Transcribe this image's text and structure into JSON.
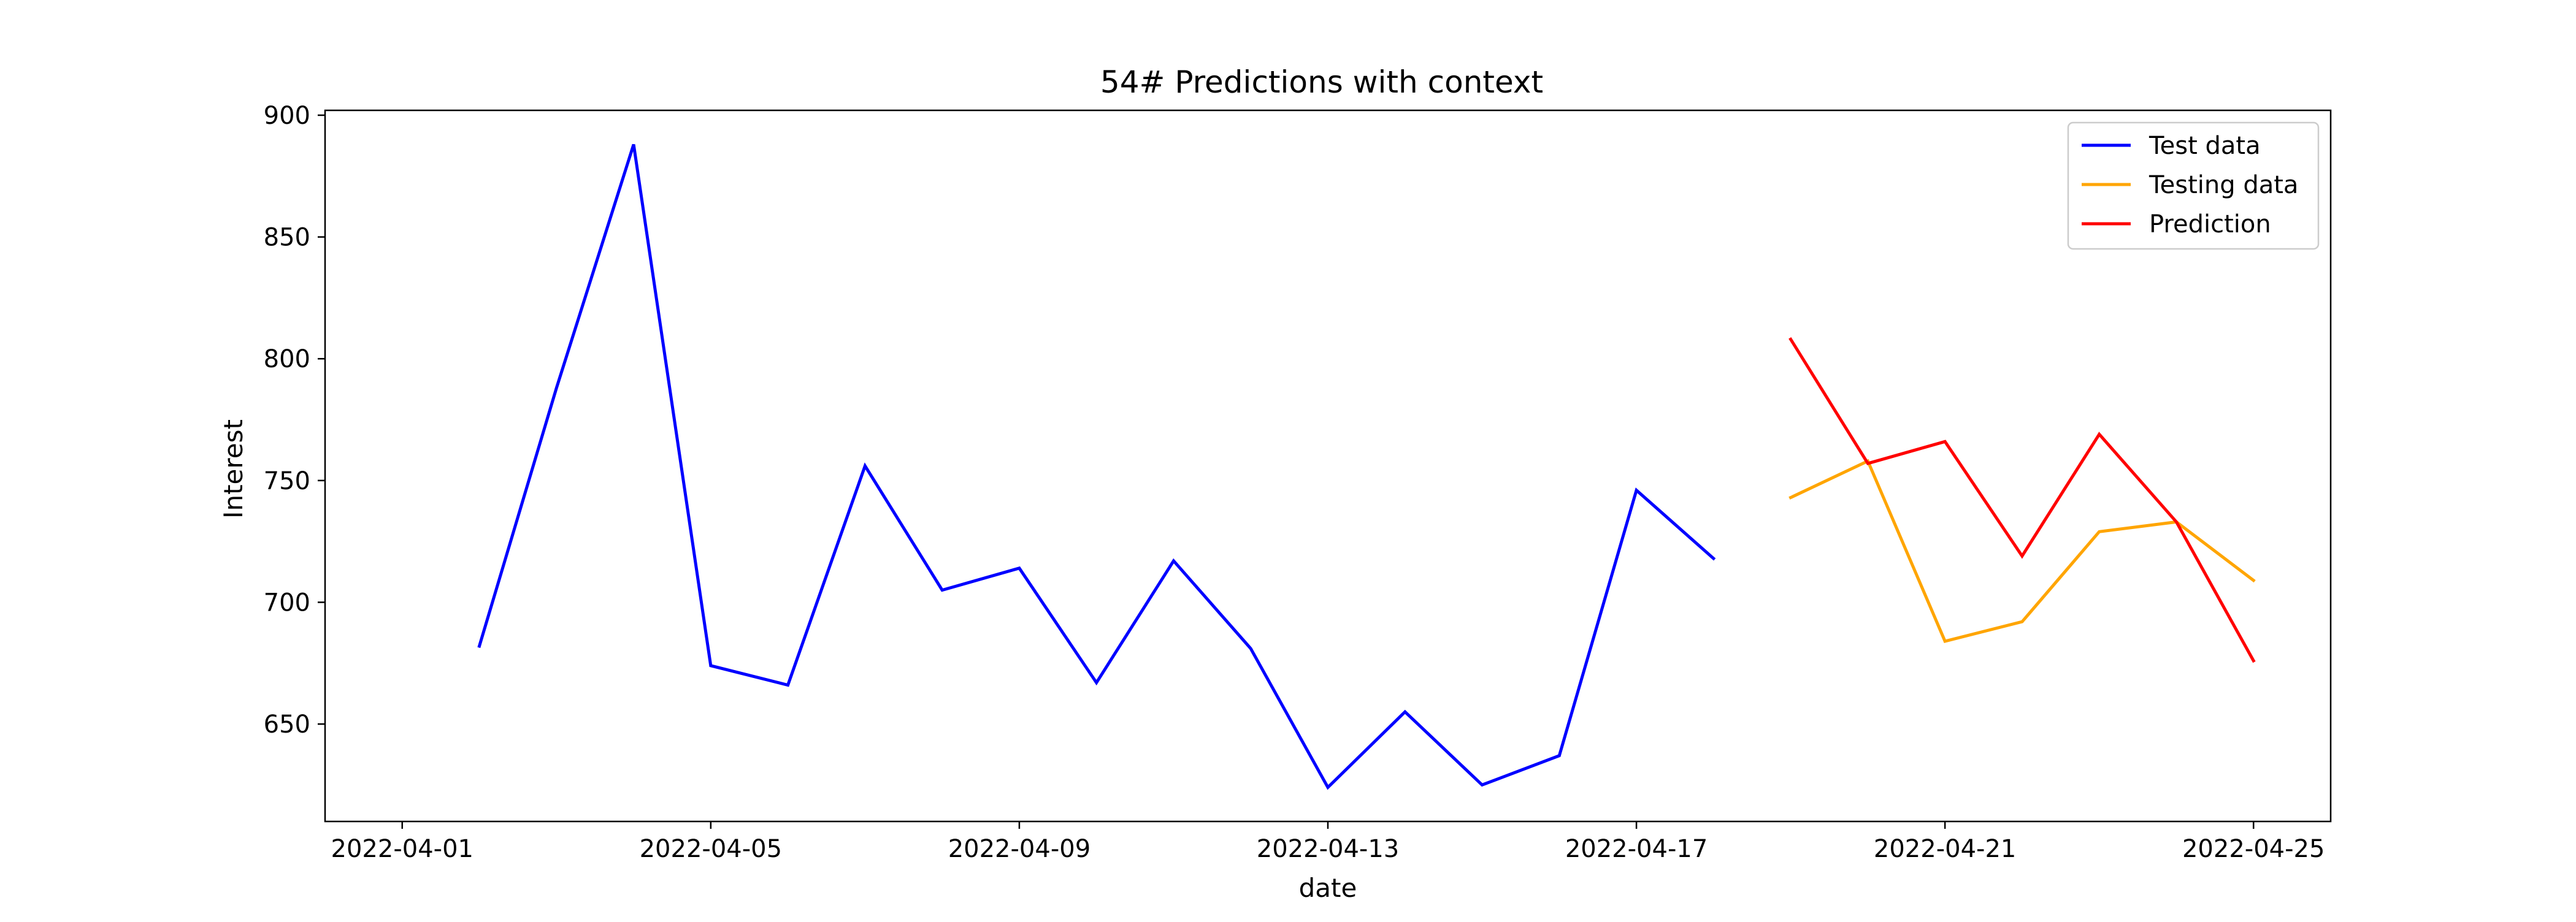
{
  "chart_data": {
    "type": "line",
    "title": "54# Predictions with context",
    "xlabel": "date",
    "ylabel": "Interest",
    "x_ticks": [
      "2022-04-01",
      "2022-04-05",
      "2022-04-09",
      "2022-04-13",
      "2022-04-17",
      "2022-04-21",
      "2022-04-25"
    ],
    "y_ticks": [
      650,
      700,
      750,
      800,
      850,
      900
    ],
    "xlim": [
      "2022-03-31",
      "2022-04-26"
    ],
    "ylim": [
      610,
      902
    ],
    "grid": false,
    "legend_position": "top-right",
    "series": [
      {
        "name": "Test data",
        "color": "#0000ff",
        "x": [
          "2022-04-02",
          "2022-04-03",
          "2022-04-04",
          "2022-04-05",
          "2022-04-06",
          "2022-04-07",
          "2022-04-08",
          "2022-04-09",
          "2022-04-10",
          "2022-04-11",
          "2022-04-12",
          "2022-04-13",
          "2022-04-14",
          "2022-04-15",
          "2022-04-16",
          "2022-04-17",
          "2022-04-18"
        ],
        "values": [
          682,
          788,
          888,
          674,
          666,
          756,
          705,
          714,
          667,
          717,
          681,
          624,
          655,
          625,
          637,
          746,
          718
        ]
      },
      {
        "name": "Testing data",
        "color": "#ffa500",
        "x": [
          "2022-04-19",
          "2022-04-20",
          "2022-04-21",
          "2022-04-22",
          "2022-04-23",
          "2022-04-24",
          "2022-04-25"
        ],
        "values": [
          743,
          758,
          684,
          692,
          729,
          733,
          709
        ]
      },
      {
        "name": "Prediction",
        "color": "#ff0000",
        "x": [
          "2022-04-19",
          "2022-04-20",
          "2022-04-21",
          "2022-04-22",
          "2022-04-23",
          "2022-04-24",
          "2022-04-25"
        ],
        "values": [
          808,
          757,
          766,
          719,
          769,
          733,
          676
        ]
      }
    ]
  }
}
